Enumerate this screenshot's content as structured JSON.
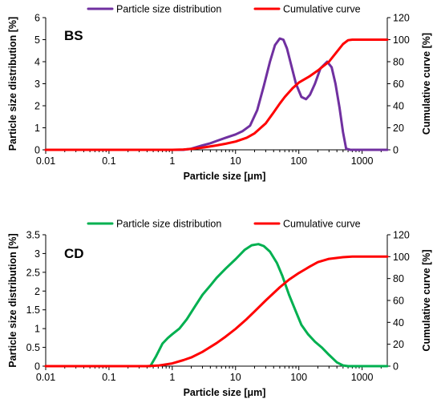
{
  "chart_data": [
    {
      "type": "line",
      "panel_label": "BS",
      "xlabel": "Particle size [μm]",
      "ylabel": "Particle size distribution [%]",
      "y2label": "Cumulative curve [%]",
      "xscale": "log",
      "xlim": [
        0.01,
        2500
      ],
      "ylim": [
        0,
        6
      ],
      "y2lim": [
        0,
        120
      ],
      "xticks": [
        "0.01",
        "0.1",
        "1",
        "10",
        "100",
        "1000"
      ],
      "yticks": [
        "0",
        "1",
        "2",
        "3",
        "4",
        "5",
        "6"
      ],
      "y2ticks": [
        "0",
        "20",
        "40",
        "60",
        "80",
        "100",
        "120"
      ],
      "grid": false,
      "legend": "top",
      "series": [
        {
          "name": "Particle size distribution",
          "axis": "left",
          "color": "#7030A0",
          "x": [
            0.01,
            1.5,
            2,
            3,
            4,
            5,
            7,
            10,
            13,
            17,
            22,
            28,
            35,
            42,
            50,
            57,
            65,
            75,
            90,
            110,
            130,
            150,
            180,
            220,
            280,
            330,
            380,
            440,
            500,
            560,
            650,
            800,
            1200,
            2500
          ],
          "y": [
            0,
            0,
            0.05,
            0.2,
            0.3,
            0.4,
            0.55,
            0.7,
            0.85,
            1.1,
            1.8,
            2.9,
            4.0,
            4.75,
            5.05,
            5.0,
            4.6,
            3.9,
            3.0,
            2.4,
            2.3,
            2.5,
            3.0,
            3.7,
            4.0,
            3.75,
            3.0,
            1.9,
            0.8,
            0.05,
            0,
            0,
            0,
            0
          ]
        },
        {
          "name": "Cumulative curve",
          "axis": "right",
          "color": "#FF0000",
          "x": [
            0.01,
            1,
            1.5,
            2,
            3,
            5,
            7,
            10,
            15,
            20,
            30,
            40,
            50,
            60,
            80,
            100,
            150,
            200,
            300,
            400,
            500,
            600,
            700,
            1000,
            2500
          ],
          "y": [
            0,
            0,
            0.3,
            0.8,
            2,
            4,
            5.5,
            7.5,
            11,
            15,
            24,
            34,
            42,
            48,
            56,
            61,
            67,
            72,
            80,
            89,
            96,
            99.5,
            100,
            100,
            100
          ]
        }
      ]
    },
    {
      "type": "line",
      "panel_label": "CD",
      "xlabel": "Particle size [μm]",
      "ylabel": "Particle size distribution [%]",
      "y2label": "Cumulative curve [%]",
      "xscale": "log",
      "xlim": [
        0.01,
        2500
      ],
      "ylim": [
        0,
        3.5
      ],
      "y2lim": [
        0,
        120
      ],
      "xticks": [
        "0.01",
        "0.1",
        "1",
        "10",
        "100",
        "1000"
      ],
      "yticks": [
        "0",
        "0.5",
        "1",
        "1.5",
        "2",
        "2.5",
        "3",
        "3.5"
      ],
      "y2ticks": [
        "0",
        "20",
        "40",
        "60",
        "80",
        "100",
        "120"
      ],
      "grid": false,
      "legend": "top",
      "series": [
        {
          "name": "Particle size distribution",
          "axis": "left",
          "color": "#00B050",
          "x": [
            0.01,
            0.45,
            0.55,
            0.7,
            0.85,
            1.0,
            1.3,
            1.7,
            2.2,
            3,
            4,
            5,
            7,
            10,
            14,
            18,
            23,
            28,
            35,
            45,
            55,
            70,
            90,
            110,
            140,
            180,
            230,
            300,
            400,
            500,
            600,
            700,
            2500
          ],
          "y": [
            0,
            0,
            0.25,
            0.6,
            0.75,
            0.85,
            1.0,
            1.25,
            1.55,
            1.9,
            2.15,
            2.35,
            2.6,
            2.85,
            3.1,
            3.22,
            3.25,
            3.2,
            3.05,
            2.75,
            2.4,
            1.9,
            1.45,
            1.1,
            0.85,
            0.65,
            0.5,
            0.3,
            0.1,
            0.02,
            0,
            0,
            0
          ]
        },
        {
          "name": "Cumulative curve",
          "axis": "right",
          "color": "#FF0000",
          "x": [
            0.01,
            0.4,
            0.6,
            1,
            1.5,
            2,
            3,
            5,
            7,
            10,
            15,
            20,
            30,
            50,
            70,
            100,
            150,
            200,
            300,
            500,
            700,
            1000,
            2500
          ],
          "y": [
            0,
            0,
            0.5,
            2.5,
            5.5,
            8,
            13,
            21,
            27,
            34,
            43,
            50,
            60,
            72,
            79,
            85,
            91,
            95,
            98,
            99.5,
            100,
            100,
            100
          ]
        }
      ]
    }
  ]
}
